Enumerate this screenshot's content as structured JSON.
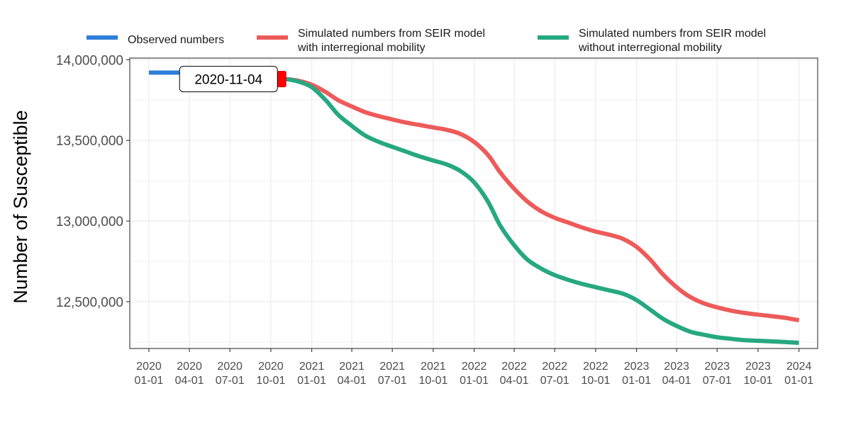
{
  "chart_data": {
    "type": "line",
    "xlabel": "",
    "ylabel": "Number of Susceptible",
    "xlim": [
      "2019-11-19",
      "2024-02-12"
    ],
    "ylim": [
      12210000,
      14010000
    ],
    "grid": true,
    "legend_position": "top",
    "y_ticks": [
      {
        "value": 12500000,
        "label": "12,500,000"
      },
      {
        "value": 13000000,
        "label": "13,000,000"
      },
      {
        "value": 13500000,
        "label": "13,500,000"
      },
      {
        "value": 14000000,
        "label": "14,000,000"
      }
    ],
    "x_ticks": [
      {
        "date": "2020-01-01",
        "line1": "2020",
        "line2": "01-01"
      },
      {
        "date": "2020-04-01",
        "line1": "2020",
        "line2": "04-01"
      },
      {
        "date": "2020-07-01",
        "line1": "2020",
        "line2": "07-01"
      },
      {
        "date": "2020-10-01",
        "line1": "2020",
        "line2": "10-01"
      },
      {
        "date": "2021-01-01",
        "line1": "2021",
        "line2": "01-01"
      },
      {
        "date": "2021-04-01",
        "line1": "2021",
        "line2": "04-01"
      },
      {
        "date": "2021-07-01",
        "line1": "2021",
        "line2": "07-01"
      },
      {
        "date": "2021-10-01",
        "line1": "2021",
        "line2": "10-01"
      },
      {
        "date": "2022-01-01",
        "line1": "2022",
        "line2": "01-01"
      },
      {
        "date": "2022-04-01",
        "line1": "2022",
        "line2": "04-01"
      },
      {
        "date": "2022-07-01",
        "line1": "2022",
        "line2": "07-01"
      },
      {
        "date": "2022-10-01",
        "line1": "2022",
        "line2": "10-01"
      },
      {
        "date": "2023-01-01",
        "line1": "2023",
        "line2": "01-01"
      },
      {
        "date": "2023-04-01",
        "line1": "2023",
        "line2": "04-01"
      },
      {
        "date": "2023-07-01",
        "line1": "2023",
        "line2": "07-01"
      },
      {
        "date": "2023-10-01",
        "line1": "2023",
        "line2": "10-01"
      },
      {
        "date": "2024-01-01",
        "line1": "2024",
        "line2": "01-01"
      }
    ],
    "annotations": [
      {
        "text": "2020-11-04",
        "date": "2020-11-04",
        "value": 13880000
      }
    ],
    "series": [
      {
        "name": "Observed numbers",
        "name_lines": [
          "Observed numbers"
        ],
        "color": "#2F7ED8",
        "x": [
          "2020-01-01",
          "2020-04-01",
          "2020-07-01",
          "2020-10-01",
          "2020-11-04"
        ],
        "y": [
          13920000,
          13920000,
          13918000,
          13915000,
          13910000
        ]
      },
      {
        "name": "Simulated numbers from SEIR model with interregional mobility",
        "name_lines": [
          "Simulated numbers from SEIR model",
          "with interregional mobility"
        ],
        "color": "#EE5A5A",
        "x": [
          "2020-11-04",
          "2020-12-01",
          "2021-01-01",
          "2021-02-01",
          "2021-03-01",
          "2021-04-01",
          "2021-05-01",
          "2021-06-01",
          "2021-07-01",
          "2021-08-01",
          "2021-09-01",
          "2021-10-01",
          "2021-11-01",
          "2021-12-01",
          "2022-01-01",
          "2022-02-01",
          "2022-03-01",
          "2022-04-01",
          "2022-05-01",
          "2022-06-01",
          "2022-07-01",
          "2022-08-01",
          "2022-09-01",
          "2022-10-01",
          "2022-11-01",
          "2022-12-01",
          "2023-01-01",
          "2023-02-01",
          "2023-03-01",
          "2023-04-01",
          "2023-05-01",
          "2023-06-01",
          "2023-07-01",
          "2023-08-01",
          "2023-09-01",
          "2023-10-01",
          "2023-11-01",
          "2023-12-01",
          "2024-01-01"
        ],
        "y": [
          13880000,
          13870000,
          13845000,
          13800000,
          13750000,
          13710000,
          13675000,
          13650000,
          13630000,
          13610000,
          13595000,
          13580000,
          13565000,
          13540000,
          13490000,
          13410000,
          13300000,
          13200000,
          13120000,
          13060000,
          13020000,
          12990000,
          12960000,
          12935000,
          12915000,
          12890000,
          12840000,
          12760000,
          12670000,
          12590000,
          12530000,
          12490000,
          12465000,
          12445000,
          12430000,
          12420000,
          12410000,
          12400000,
          12385000
        ]
      },
      {
        "name": "Simulated numbers from SEIR model without interregional mobility",
        "name_lines": [
          "Simulated numbers from SEIR model",
          "without interregional mobility"
        ],
        "color": "#26A882",
        "x": [
          "2020-11-04",
          "2020-12-01",
          "2021-01-01",
          "2021-02-01",
          "2021-03-01",
          "2021-04-01",
          "2021-05-01",
          "2021-06-01",
          "2021-07-01",
          "2021-08-01",
          "2021-09-01",
          "2021-10-01",
          "2021-11-01",
          "2021-12-01",
          "2022-01-01",
          "2022-02-01",
          "2022-03-01",
          "2022-04-01",
          "2022-05-01",
          "2022-06-01",
          "2022-07-01",
          "2022-08-01",
          "2022-09-01",
          "2022-10-01",
          "2022-11-01",
          "2022-12-01",
          "2023-01-01",
          "2023-02-01",
          "2023-03-01",
          "2023-04-01",
          "2023-05-01",
          "2023-06-01",
          "2023-07-01",
          "2023-08-01",
          "2023-09-01",
          "2023-10-01",
          "2023-11-01",
          "2023-12-01",
          "2024-01-01"
        ],
        "y": [
          13880000,
          13865000,
          13830000,
          13750000,
          13660000,
          13590000,
          13530000,
          13490000,
          13460000,
          13430000,
          13400000,
          13375000,
          13350000,
          13310000,
          13240000,
          13120000,
          12970000,
          12850000,
          12760000,
          12705000,
          12665000,
          12635000,
          12610000,
          12590000,
          12570000,
          12550000,
          12510000,
          12450000,
          12395000,
          12350000,
          12315000,
          12295000,
          12280000,
          12270000,
          12262000,
          12258000,
          12254000,
          12250000,
          12245000
        ]
      }
    ]
  }
}
